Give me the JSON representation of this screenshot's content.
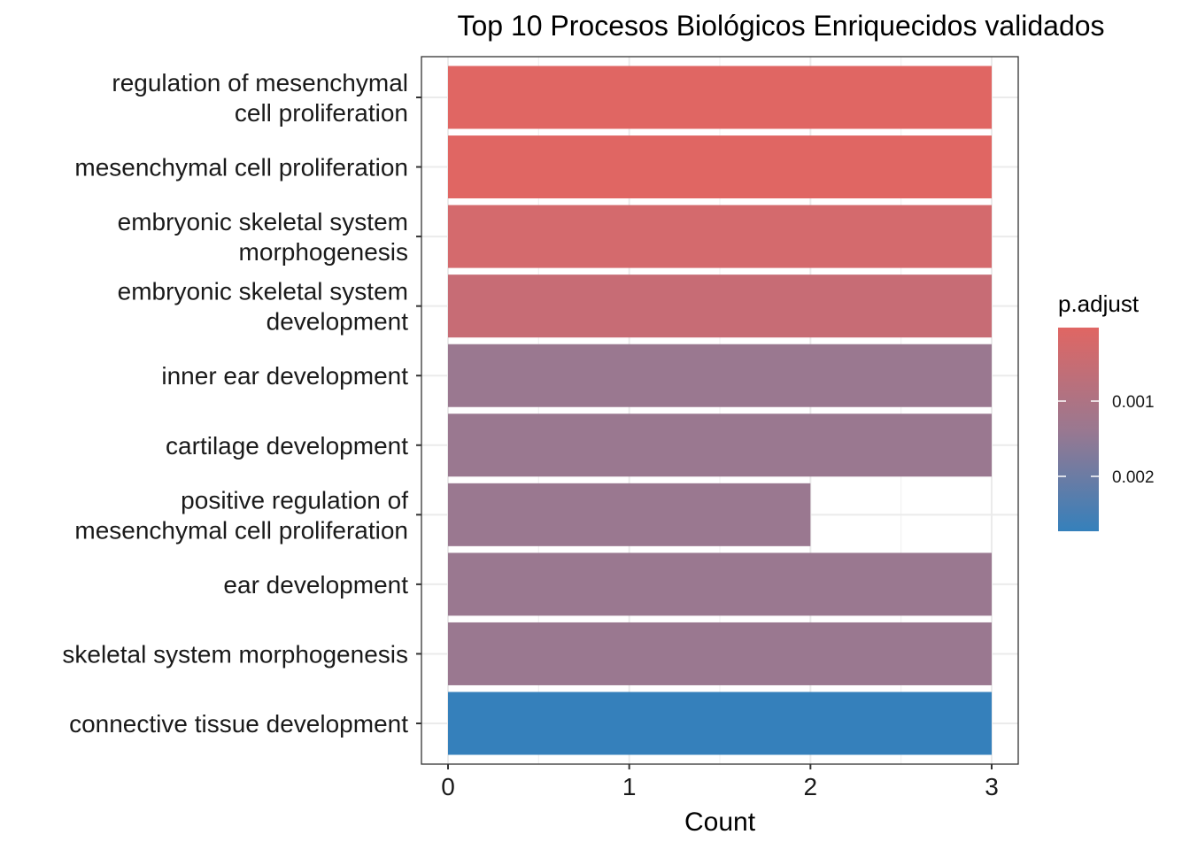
{
  "chart_data": {
    "type": "bar",
    "orientation": "horizontal",
    "title": "Top 10 Procesos Biológicos Enriquecidos validados",
    "xlabel": "Count",
    "ylabel": "",
    "xlim": [
      0,
      3
    ],
    "x_ticks": [
      "0",
      "1",
      "2",
      "3"
    ],
    "grid": true,
    "categories": [
      "regulation of mesenchymal\ncell proliferation",
      "mesenchymal cell proliferation",
      "embryonic skeletal system\nmorphogenesis",
      "embryonic skeletal system\ndevelopment",
      "inner ear development",
      "cartilage development",
      "positive regulation of\nmesenchymal cell proliferation",
      "ear development",
      "skeletal system morphogenesis",
      "connective tissue development"
    ],
    "values": [
      3,
      3,
      3,
      3,
      3,
      3,
      2,
      3,
      3,
      3
    ],
    "colors": [
      "#E06663",
      "#E06663",
      "#D46A6D",
      "#C76C75",
      "#9A7890",
      "#9A7890",
      "#9A7890",
      "#9A7890",
      "#9A7890",
      "#3580BB"
    ],
    "legend": {
      "title": "p.adjust",
      "placement": "right",
      "color_high": "#E06663",
      "color_low": "#3580BB",
      "tick_labels": [
        "0.001",
        "0.002"
      ]
    }
  }
}
